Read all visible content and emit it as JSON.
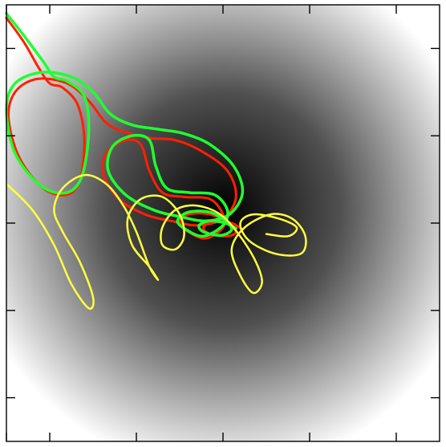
{
  "chart_data": {
    "type": "line",
    "title": "",
    "xlabel": "",
    "ylabel": "",
    "tick_labels": "none",
    "grid": false,
    "legend": "none",
    "background": {
      "kind": "radial-gradient",
      "center_color": "#000000",
      "edge_color": "#ffffff"
    },
    "xlim": [
      0,
      1
    ],
    "ylim": [
      0,
      1
    ],
    "x_ticks": [
      0,
      0.1,
      0.3,
      0.5,
      0.7,
      0.9
    ],
    "y_ticks": [
      0.1,
      0.3,
      0.5,
      0.7,
      0.9
    ],
    "series": [
      {
        "color": "#ff2000",
        "stroke": 3,
        "jagged": true,
        "points": [
          [
            0.0,
            0.97
          ],
          [
            0.04,
            0.915
          ],
          [
            0.075,
            0.855
          ],
          [
            0.1,
            0.82
          ],
          [
            0.13,
            0.81
          ],
          [
            0.165,
            0.77
          ],
          [
            0.18,
            0.69
          ],
          [
            0.17,
            0.6
          ],
          [
            0.14,
            0.565
          ],
          [
            0.085,
            0.58
          ],
          [
            0.03,
            0.65
          ],
          [
            0.005,
            0.74
          ],
          [
            0.02,
            0.8
          ],
          [
            0.07,
            0.83
          ],
          [
            0.14,
            0.82
          ],
          [
            0.19,
            0.78
          ],
          [
            0.23,
            0.73
          ],
          [
            0.27,
            0.71
          ],
          [
            0.33,
            0.695
          ],
          [
            0.39,
            0.69
          ],
          [
            0.45,
            0.665
          ],
          [
            0.51,
            0.62
          ],
          [
            0.53,
            0.56
          ],
          [
            0.5,
            0.51
          ],
          [
            0.44,
            0.495
          ],
          [
            0.38,
            0.505
          ],
          [
            0.32,
            0.52
          ],
          [
            0.26,
            0.555
          ],
          [
            0.225,
            0.61
          ],
          [
            0.23,
            0.66
          ],
          [
            0.275,
            0.69
          ],
          [
            0.31,
            0.68
          ],
          [
            0.33,
            0.62
          ],
          [
            0.36,
            0.57
          ],
          [
            0.41,
            0.56
          ],
          [
            0.47,
            0.555
          ],
          [
            0.5,
            0.52
          ],
          [
            0.5,
            0.49
          ],
          [
            0.46,
            0.465
          ],
          [
            0.42,
            0.48
          ],
          [
            0.4,
            0.5
          ],
          [
            0.42,
            0.52
          ],
          [
            0.47,
            0.52
          ],
          [
            0.51,
            0.5
          ],
          [
            0.53,
            0.48
          ],
          [
            0.51,
            0.47
          ],
          [
            0.47,
            0.475
          ],
          [
            0.455,
            0.49
          ],
          [
            0.48,
            0.505
          ],
          [
            0.52,
            0.5
          ],
          [
            0.545,
            0.485
          ]
        ]
      },
      {
        "color": "#20ff30",
        "stroke": 3.5,
        "jagged": true,
        "points": [
          [
            0.0,
            0.98
          ],
          [
            0.04,
            0.93
          ],
          [
            0.085,
            0.87
          ],
          [
            0.11,
            0.835
          ],
          [
            0.14,
            0.825
          ],
          [
            0.18,
            0.79
          ],
          [
            0.19,
            0.71
          ],
          [
            0.175,
            0.61
          ],
          [
            0.14,
            0.57
          ],
          [
            0.08,
            0.585
          ],
          [
            0.02,
            0.66
          ],
          [
            0.0,
            0.76
          ],
          [
            0.02,
            0.82
          ],
          [
            0.08,
            0.845
          ],
          [
            0.15,
            0.835
          ],
          [
            0.2,
            0.8
          ],
          [
            0.24,
            0.75
          ],
          [
            0.29,
            0.725
          ],
          [
            0.35,
            0.715
          ],
          [
            0.41,
            0.705
          ],
          [
            0.47,
            0.68
          ],
          [
            0.525,
            0.63
          ],
          [
            0.545,
            0.57
          ],
          [
            0.515,
            0.52
          ],
          [
            0.46,
            0.505
          ],
          [
            0.4,
            0.515
          ],
          [
            0.34,
            0.53
          ],
          [
            0.275,
            0.565
          ],
          [
            0.235,
            0.62
          ],
          [
            0.245,
            0.675
          ],
          [
            0.29,
            0.7
          ],
          [
            0.33,
            0.69
          ],
          [
            0.345,
            0.63
          ],
          [
            0.37,
            0.58
          ],
          [
            0.42,
            0.57
          ],
          [
            0.48,
            0.565
          ],
          [
            0.51,
            0.53
          ],
          [
            0.5,
            0.495
          ],
          [
            0.455,
            0.47
          ],
          [
            0.415,
            0.485
          ],
          [
            0.395,
            0.505
          ],
          [
            0.42,
            0.525
          ],
          [
            0.47,
            0.525
          ],
          [
            0.505,
            0.505
          ],
          [
            0.52,
            0.485
          ],
          [
            0.495,
            0.472
          ],
          [
            0.455,
            0.48
          ],
          [
            0.445,
            0.495
          ],
          [
            0.47,
            0.505
          ],
          [
            0.505,
            0.5
          ],
          [
            0.53,
            0.488
          ]
        ]
      },
      {
        "color": "#ffff40",
        "stroke": 2.5,
        "jagged": false,
        "points": [
          [
            0.0,
            0.59
          ],
          [
            0.06,
            0.53
          ],
          [
            0.11,
            0.45
          ],
          [
            0.15,
            0.36
          ],
          [
            0.19,
            0.305
          ],
          [
            0.2,
            0.33
          ],
          [
            0.17,
            0.41
          ],
          [
            0.13,
            0.48
          ],
          [
            0.11,
            0.53
          ],
          [
            0.13,
            0.58
          ],
          [
            0.18,
            0.61
          ],
          [
            0.23,
            0.59
          ],
          [
            0.27,
            0.54
          ],
          [
            0.3,
            0.48
          ],
          [
            0.33,
            0.4
          ],
          [
            0.35,
            0.37
          ],
          [
            0.33,
            0.4
          ],
          [
            0.29,
            0.45
          ],
          [
            0.28,
            0.51
          ],
          [
            0.31,
            0.555
          ],
          [
            0.36,
            0.56
          ],
          [
            0.4,
            0.52
          ],
          [
            0.41,
            0.47
          ],
          [
            0.39,
            0.44
          ],
          [
            0.36,
            0.45
          ],
          [
            0.36,
            0.49
          ],
          [
            0.39,
            0.53
          ],
          [
            0.44,
            0.54
          ],
          [
            0.5,
            0.515
          ],
          [
            0.56,
            0.44
          ],
          [
            0.59,
            0.37
          ],
          [
            0.57,
            0.34
          ],
          [
            0.54,
            0.38
          ],
          [
            0.52,
            0.44
          ],
          [
            0.55,
            0.49
          ],
          [
            0.61,
            0.52
          ],
          [
            0.66,
            0.51
          ],
          [
            0.69,
            0.47
          ],
          [
            0.68,
            0.43
          ],
          [
            0.62,
            0.43
          ],
          [
            0.56,
            0.46
          ],
          [
            0.54,
            0.5
          ],
          [
            0.57,
            0.52
          ],
          [
            0.63,
            0.51
          ],
          [
            0.67,
            0.49
          ],
          [
            0.65,
            0.47
          ],
          [
            0.6,
            0.475
          ]
        ]
      }
    ]
  }
}
